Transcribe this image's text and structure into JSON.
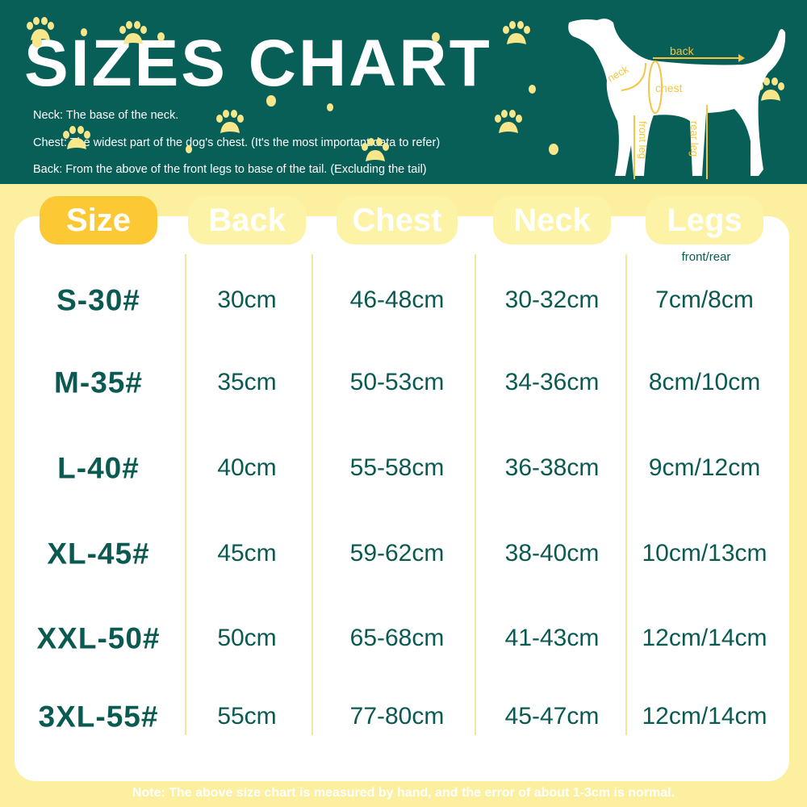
{
  "title": "SIZES CHART",
  "descriptions": {
    "neck": "Neck: The base of the neck.",
    "chest": "Chest: The widest part of the dog's chest. (It's the most important data to refer)",
    "back": "Back: From the above of the front legs to base of the tail. (Excluding the tail)"
  },
  "diagram": {
    "back": "back",
    "neck": "neck",
    "chest": "chest",
    "front_leg": "front leg",
    "rear_leg": "rear leg"
  },
  "colors": {
    "primary": "#075f57",
    "background": "#fcef9f",
    "accent": "#fcc834",
    "text": "#0a5a51"
  },
  "table": {
    "headers": [
      "Size",
      "Back",
      "Chest",
      "Neck",
      "Legs"
    ],
    "legs_subheader": "front/rear",
    "rows": [
      [
        "S-30#",
        "30cm",
        "46-48cm",
        "30-32cm",
        "7cm/8cm"
      ],
      [
        "M-35#",
        "35cm",
        "50-53cm",
        "34-36cm",
        "8cm/10cm"
      ],
      [
        "L-40#",
        "40cm",
        "55-58cm",
        "36-38cm",
        "9cm/12cm"
      ],
      [
        "XL-45#",
        "45cm",
        "59-62cm",
        "38-40cm",
        "10cm/13cm"
      ],
      [
        "XXL-50#",
        "50cm",
        "65-68cm",
        "41-43cm",
        "12cm/14cm"
      ],
      [
        "3XL-55#",
        "55cm",
        "77-80cm",
        "45-47cm",
        "12cm/14cm"
      ]
    ]
  },
  "note": "Note: The above size chart is measured by hand, and the error of about 1-3cm is normal."
}
